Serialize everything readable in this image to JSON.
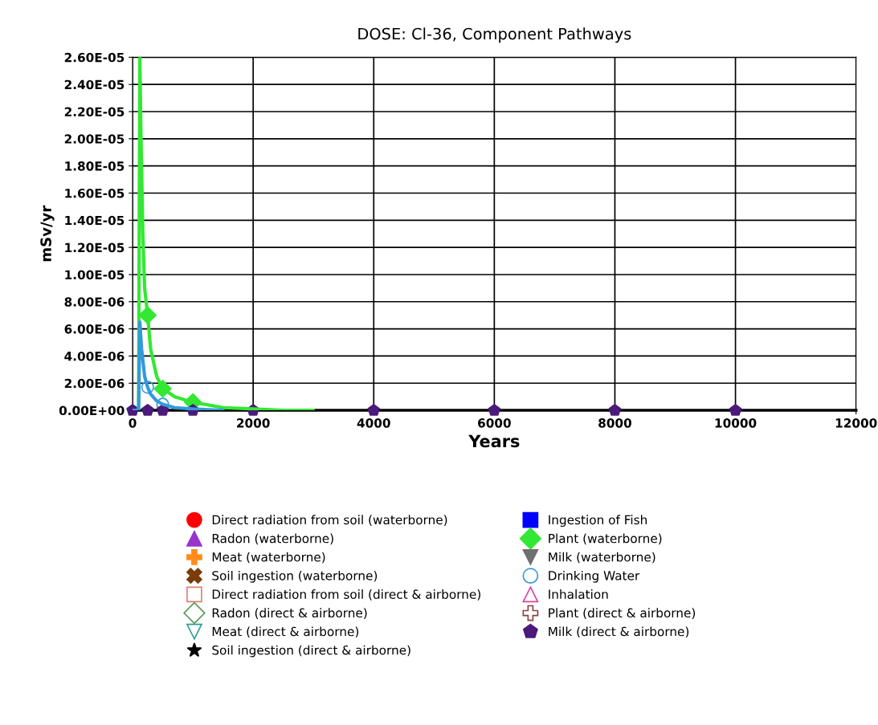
{
  "chart_data": {
    "type": "scatter",
    "title": "DOSE: Cl-36, Component Pathways",
    "xlabel": "Years",
    "ylabel": "mSv/yr",
    "xlim": [
      0,
      12000
    ],
    "xticks": [
      0,
      2000,
      4000,
      6000,
      8000,
      10000,
      12000
    ],
    "ylim": [
      0,
      2.6e-05
    ],
    "yticks": [
      {
        "value": 0,
        "label": "0.00E+00"
      },
      {
        "value": 2e-06,
        "label": "2.00E-06"
      },
      {
        "value": 4e-06,
        "label": "4.00E-06"
      },
      {
        "value": 6e-06,
        "label": "6.00E-06"
      },
      {
        "value": 8e-06,
        "label": "8.00E-06"
      },
      {
        "value": 1e-05,
        "label": "1.00E-05"
      },
      {
        "value": 1.2e-05,
        "label": "1.20E-05"
      },
      {
        "value": 1.4e-05,
        "label": "1.40E-05"
      },
      {
        "value": 1.6e-05,
        "label": "1.60E-05"
      },
      {
        "value": 1.8e-05,
        "label": "1.80E-05"
      },
      {
        "value": 2e-05,
        "label": "2.00E-05"
      },
      {
        "value": 2.2e-05,
        "label": "2.20E-05"
      },
      {
        "value": 2.4e-05,
        "label": "2.40E-05"
      },
      {
        "value": 2.6e-05,
        "label": "2.60E-05"
      }
    ],
    "grid": true,
    "legend": "bottom",
    "series": [
      {
        "type": "line",
        "marker": "none",
        "color": "#33e833",
        "x": [
          0,
          100,
          120,
          140,
          170,
          200,
          250,
          300,
          400,
          500,
          700,
          1000,
          1500,
          2000,
          2500,
          3000
        ],
        "values": [
          0,
          0,
          2.6e-05,
          2e-05,
          1.3e-05,
          9e-06,
          7e-06,
          4.5e-06,
          2.5e-06,
          1.6e-06,
          1e-06,
          6e-07,
          2e-07,
          1e-07,
          0,
          0
        ]
      },
      {
        "type": "line",
        "marker": "none",
        "color": "#3399dd",
        "x": [
          0,
          100,
          120,
          150,
          200,
          250,
          300,
          400,
          500,
          700,
          1000,
          1500
        ],
        "values": [
          0,
          0,
          6.5e-06,
          4.5e-06,
          2.5e-06,
          1.7e-06,
          1.2e-06,
          7e-07,
          4.5e-07,
          2e-07,
          1e-07,
          0
        ]
      },
      {
        "name": "Direct radiation from soil (waterborne)",
        "color": "#ff0000"
      },
      {
        "name": "Radon (waterborne)",
        "color": "#9933cc"
      },
      {
        "name": "Meat (waterborne)",
        "color": "#ff8c1a"
      },
      {
        "name": "Soil ingestion (waterborne)",
        "color": "#7a3d0a"
      },
      {
        "name": "Direct radiation from soil (direct & airborne)",
        "color": "#e08070"
      },
      {
        "name": "Radon (direct & airborne)",
        "color": "#559955"
      },
      {
        "name": "Meat (direct & airborne)",
        "color": "#339999"
      },
      {
        "name": "Soil ingestion (direct & airborne)",
        "color": "#000000"
      },
      {
        "name": "Ingestion of Fish",
        "color": "#0000ff"
      },
      {
        "name": "Plant (waterborne)",
        "color": "#33e833",
        "x": [
          250,
          500,
          1000
        ],
        "values": [
          7e-06,
          1.6e-06,
          6e-07
        ]
      },
      {
        "name": "Milk (waterborne)",
        "color": "#707070"
      },
      {
        "name": "Drinking Water",
        "color": "#3399dd",
        "x": [
          250,
          500
        ],
        "values": [
          1.7e-06,
          4.5e-07
        ]
      },
      {
        "name": "Inhalation",
        "color": "#dd4499"
      },
      {
        "name": "Plant (direct & airborne)",
        "color": "#884444"
      },
      {
        "name": "Milk (direct & airborne)",
        "color": "#4b1a7a",
        "x": [
          0,
          250,
          500,
          1000,
          2000,
          4000,
          6000,
          8000,
          10000
        ],
        "values": [
          0,
          0,
          0,
          0,
          0,
          0,
          0,
          0,
          0
        ]
      }
    ]
  }
}
